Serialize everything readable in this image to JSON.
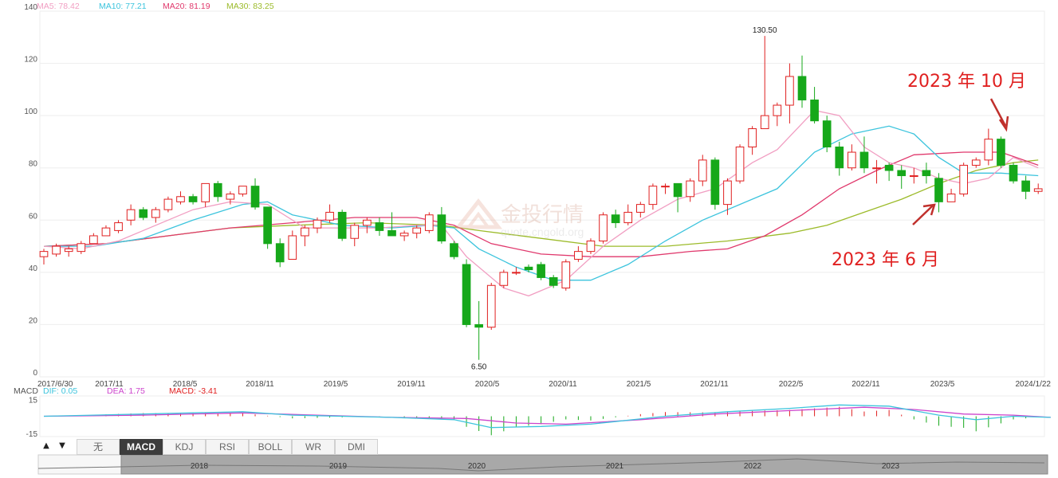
{
  "chart_data": {
    "type": "candlestick",
    "legend": [
      {
        "label": "MA5: 78.42",
        "color": "#f19ec2"
      },
      {
        "label": "MA10: 77.21",
        "color": "#3cc4dd"
      },
      {
        "label": "MA20: 81.19",
        "color": "#e0386c"
      },
      {
        "label": "MA30: 83.25",
        "color": "#9cbb2a"
      }
    ],
    "yticks": [
      0,
      20,
      40,
      60,
      80,
      100,
      120,
      140
    ],
    "ylim": [
      0,
      140
    ],
    "xlabels": [
      "2017/6/30",
      "2017/11",
      "2018/5",
      "2018/11",
      "2019/5",
      "2019/11",
      "2020/5",
      "2020/11",
      "2021/5",
      "2021/11",
      "2022/5",
      "2022/11",
      "2023/5",
      "2024/1/22"
    ],
    "max_label": "130.50",
    "min_label": "6.50",
    "candles": [
      [
        46,
        48,
        43,
        49
      ],
      [
        47,
        50,
        46,
        51
      ],
      [
        48,
        49,
        46,
        50
      ],
      [
        48,
        51,
        47,
        52
      ],
      [
        51,
        54,
        51,
        55
      ],
      [
        54,
        57,
        54,
        58
      ],
      [
        56,
        59,
        55,
        60
      ],
      [
        60,
        64,
        58,
        66
      ],
      [
        64,
        61,
        60,
        65
      ],
      [
        61,
        64,
        59,
        65
      ],
      [
        64,
        68,
        63,
        69
      ],
      [
        67,
        69,
        66,
        71
      ],
      [
        69,
        67,
        66,
        70
      ],
      [
        67,
        74,
        65,
        74
      ],
      [
        74,
        69,
        67,
        75
      ],
      [
        68,
        70,
        66,
        71
      ],
      [
        70,
        73,
        69,
        73
      ],
      [
        73,
        65,
        64,
        76
      ],
      [
        65,
        51,
        49,
        65
      ],
      [
        51,
        44,
        42,
        53
      ],
      [
        45,
        54,
        45,
        56
      ],
      [
        54,
        57,
        50,
        58
      ],
      [
        57,
        60,
        55,
        61
      ],
      [
        60,
        63,
        59,
        66
      ],
      [
        63,
        53,
        52,
        64
      ],
      [
        53,
        58,
        50,
        59
      ],
      [
        58,
        60,
        55,
        61
      ],
      [
        59,
        56,
        54,
        61
      ],
      [
        56,
        54,
        54,
        63
      ],
      [
        54,
        55,
        52,
        56
      ],
      [
        55,
        57,
        53,
        58
      ],
      [
        56,
        62,
        55,
        63
      ],
      [
        62,
        52,
        51,
        65
      ],
      [
        51,
        46,
        45,
        52
      ],
      [
        43,
        20,
        19,
        45
      ],
      [
        20,
        19,
        6.5,
        29
      ],
      [
        19,
        35,
        18,
        36
      ],
      [
        35,
        40,
        34,
        41
      ],
      [
        40,
        40,
        39,
        42
      ],
      [
        42,
        41,
        40,
        43
      ],
      [
        43,
        38,
        37,
        44
      ],
      [
        38,
        35,
        34,
        39
      ],
      [
        34,
        44,
        33,
        45
      ],
      [
        45,
        48,
        44,
        50
      ],
      [
        48,
        52,
        47,
        53
      ],
      [
        52,
        62,
        51,
        63
      ],
      [
        62,
        59,
        57,
        64
      ],
      [
        59,
        63,
        58,
        66
      ],
      [
        63,
        66,
        61,
        67
      ],
      [
        66,
        73,
        64,
        74
      ],
      [
        73,
        73,
        70,
        74
      ],
      [
        74,
        69,
        63,
        74
      ],
      [
        69,
        75,
        67,
        76
      ],
      [
        75,
        83,
        73,
        85
      ],
      [
        83,
        66,
        64,
        84
      ],
      [
        66,
        75,
        62,
        76
      ],
      [
        75,
        88,
        74,
        89
      ],
      [
        88,
        95,
        85,
        96
      ],
      [
        95,
        100,
        96,
        130.5
      ],
      [
        100,
        104,
        96,
        105
      ],
      [
        104,
        115,
        97,
        120
      ],
      [
        115,
        106,
        103,
        123
      ],
      [
        106,
        98,
        97,
        111
      ],
      [
        98,
        88,
        86,
        100
      ],
      [
        88,
        80,
        77,
        90
      ],
      [
        80,
        86,
        79,
        89
      ],
      [
        86,
        80,
        78,
        92
      ],
      [
        80,
        80,
        74,
        83
      ],
      [
        81,
        79,
        75,
        82
      ],
      [
        79,
        77,
        72,
        81
      ],
      [
        77,
        77,
        74,
        80
      ],
      [
        79,
        77,
        74,
        82
      ],
      [
        76,
        67,
        63,
        78
      ],
      [
        67,
        70,
        67,
        72
      ],
      [
        70,
        81,
        69,
        82
      ],
      [
        81,
        83,
        80,
        84
      ],
      [
        83,
        91,
        81,
        95
      ],
      [
        91,
        81,
        80,
        92
      ],
      [
        81,
        75,
        74,
        82
      ],
      [
        75,
        71,
        68,
        77
      ],
      [
        71,
        72,
        70,
        74
      ]
    ],
    "ma5": [
      [
        0,
        50
      ],
      [
        3,
        49
      ],
      [
        6,
        52
      ],
      [
        9,
        58
      ],
      [
        12,
        64
      ],
      [
        15,
        67
      ],
      [
        18,
        66
      ],
      [
        21,
        57
      ],
      [
        24,
        57
      ],
      [
        27,
        57
      ],
      [
        30,
        58
      ],
      [
        32,
        58
      ],
      [
        34,
        46
      ],
      [
        37,
        34
      ],
      [
        39,
        31
      ],
      [
        42,
        37
      ],
      [
        45,
        50
      ],
      [
        48,
        60
      ],
      [
        51,
        68
      ],
      [
        54,
        72
      ],
      [
        57,
        82
      ],
      [
        59,
        87
      ],
      [
        62,
        102
      ],
      [
        64,
        100
      ],
      [
        66,
        88
      ],
      [
        68,
        82
      ],
      [
        70,
        80
      ],
      [
        72,
        76
      ],
      [
        74,
        74
      ],
      [
        76,
        76
      ],
      [
        78,
        84
      ],
      [
        80,
        80
      ]
    ],
    "ma10": [
      [
        0,
        50
      ],
      [
        4,
        50
      ],
      [
        8,
        53
      ],
      [
        12,
        60
      ],
      [
        16,
        66
      ],
      [
        18,
        67
      ],
      [
        20,
        62
      ],
      [
        24,
        58
      ],
      [
        28,
        57
      ],
      [
        31,
        58
      ],
      [
        33,
        57
      ],
      [
        35,
        49
      ],
      [
        38,
        42
      ],
      [
        41,
        37
      ],
      [
        44,
        37
      ],
      [
        47,
        43
      ],
      [
        50,
        52
      ],
      [
        53,
        60
      ],
      [
        56,
        66
      ],
      [
        59,
        72
      ],
      [
        62,
        86
      ],
      [
        65,
        93
      ],
      [
        68,
        96
      ],
      [
        70,
        93
      ],
      [
        72,
        84
      ],
      [
        74,
        78
      ],
      [
        77,
        78
      ],
      [
        80,
        77
      ]
    ],
    "ma20": [
      [
        0,
        50
      ],
      [
        5,
        51
      ],
      [
        10,
        54
      ],
      [
        15,
        57
      ],
      [
        20,
        59
      ],
      [
        25,
        61
      ],
      [
        30,
        61
      ],
      [
        33,
        58
      ],
      [
        36,
        51
      ],
      [
        40,
        47
      ],
      [
        44,
        46
      ],
      [
        48,
        46
      ],
      [
        52,
        48
      ],
      [
        55,
        49
      ],
      [
        58,
        54
      ],
      [
        61,
        62
      ],
      [
        64,
        72
      ],
      [
        67,
        79
      ],
      [
        70,
        85
      ],
      [
        74,
        86
      ],
      [
        77,
        86
      ],
      [
        80,
        81
      ]
    ],
    "ma30": [
      [
        0,
        50
      ],
      [
        5,
        51
      ],
      [
        10,
        54
      ],
      [
        15,
        57
      ],
      [
        20,
        58
      ],
      [
        26,
        59
      ],
      [
        32,
        58
      ],
      [
        35,
        56
      ],
      [
        40,
        53
      ],
      [
        45,
        50
      ],
      [
        50,
        50
      ],
      [
        55,
        52
      ],
      [
        60,
        55
      ],
      [
        63,
        58
      ],
      [
        66,
        63
      ],
      [
        69,
        68
      ],
      [
        72,
        74
      ],
      [
        75,
        79
      ],
      [
        78,
        82
      ],
      [
        80,
        83
      ]
    ],
    "macd_legend": [
      {
        "label": "MACD",
        "color": "#555555"
      },
      {
        "label": "DIF: 0.05",
        "color": "#3cc4dd"
      },
      {
        "label": "DEA: 1.75",
        "color": "#cc44cc"
      },
      {
        "label": "MACD: -3.41",
        "color": "#e02020"
      }
    ],
    "macd_yticks": [
      15,
      -15
    ],
    "macd_ylim": [
      -18,
      18
    ],
    "dif": [
      [
        0,
        0
      ],
      [
        8,
        2
      ],
      [
        16,
        4
      ],
      [
        20,
        1
      ],
      [
        28,
        -1
      ],
      [
        33,
        -3
      ],
      [
        36,
        -10
      ],
      [
        40,
        -9
      ],
      [
        44,
        -7
      ],
      [
        50,
        0
      ],
      [
        55,
        4
      ],
      [
        60,
        7
      ],
      [
        64,
        10
      ],
      [
        68,
        9
      ],
      [
        72,
        1
      ],
      [
        75,
        -3
      ],
      [
        78,
        0
      ],
      [
        81,
        -1
      ]
    ],
    "dea": [
      [
        0,
        0
      ],
      [
        8,
        1
      ],
      [
        16,
        3
      ],
      [
        22,
        1
      ],
      [
        28,
        -1
      ],
      [
        34,
        -2
      ],
      [
        38,
        -6
      ],
      [
        42,
        -7
      ],
      [
        48,
        -3
      ],
      [
        54,
        2
      ],
      [
        60,
        5
      ],
      [
        66,
        8
      ],
      [
        70,
        6
      ],
      [
        74,
        2
      ],
      [
        78,
        1
      ],
      [
        81,
        -1
      ]
    ]
  },
  "annotations": {
    "oct2023": "2023 年 10 月",
    "jun2023": "2023 年 6 月"
  },
  "watermark": {
    "name": "金投行情",
    "url": "quote.cngold.org"
  },
  "tabs": {
    "up": "▲",
    "down": "▼",
    "items": [
      "无",
      "MACD",
      "KDJ",
      "RSI",
      "BOLL",
      "WR",
      "DMI"
    ],
    "active": "MACD"
  },
  "navigator_years": [
    "2018",
    "2019",
    "2020",
    "2021",
    "2022",
    "2023"
  ],
  "colors": {
    "up": "#e02020",
    "down": "#16a81a"
  }
}
